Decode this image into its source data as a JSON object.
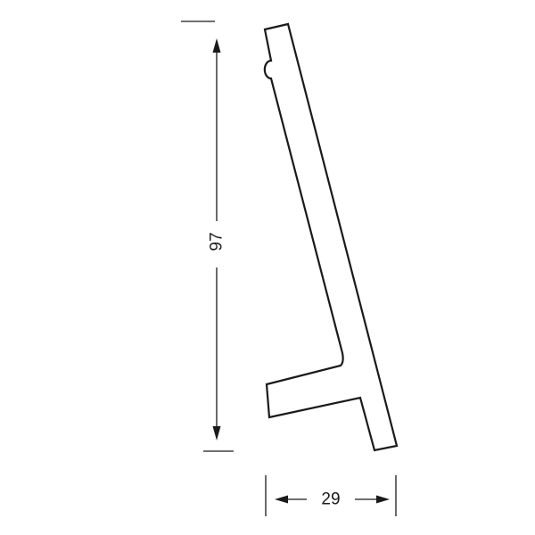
{
  "dimensions": {
    "height": {
      "value": "97"
    },
    "width": {
      "value": "29"
    }
  },
  "colors": {
    "stroke": "#1a1a1a",
    "background": "#ffffff"
  }
}
